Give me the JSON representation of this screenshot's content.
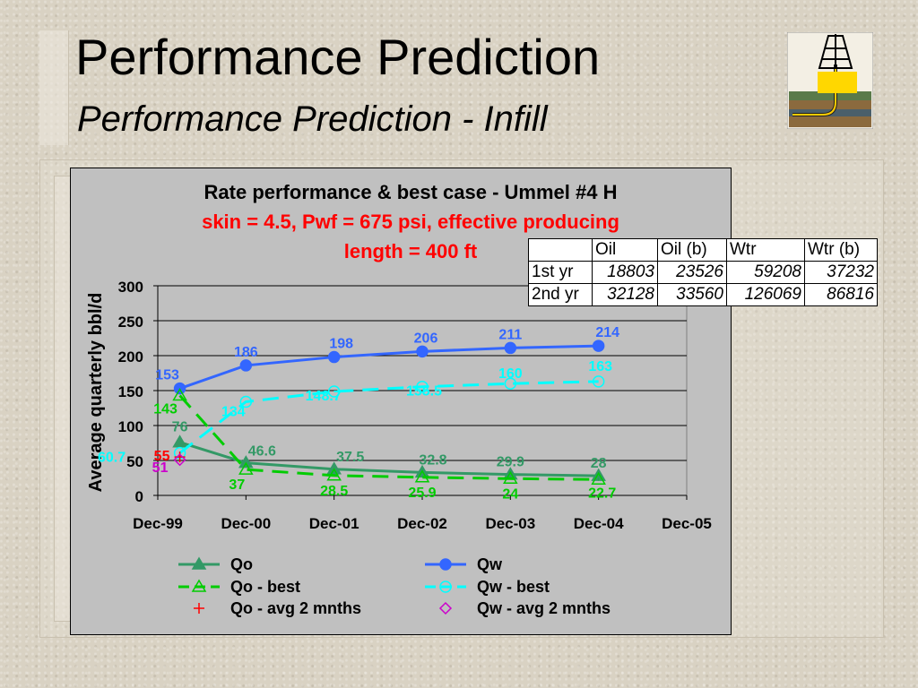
{
  "slide": {
    "title": "Performance Prediction",
    "subtitle": "Performance Prediction - Infill"
  },
  "chart_title": {
    "line1": "Rate performance & best case - Ummel #4 H",
    "line2": "skin = 4.5, Pwf = 675 psi, effective producing",
    "line3": "length = 400 ft"
  },
  "table": {
    "headers": [
      "",
      "Oil",
      "Oil (b)",
      "Wtr",
      "Wtr (b)"
    ],
    "rows": [
      {
        "label": "1st yr",
        "values": [
          "18803",
          "23526",
          "59208",
          "37232"
        ]
      },
      {
        "label": "2nd yr",
        "values": [
          "32128",
          "33560",
          "126069",
          "86816"
        ]
      }
    ]
  },
  "chart_data": {
    "type": "line",
    "ylabel": "Average quarterly bbl/d",
    "xlabel": "",
    "ylim": [
      0,
      300
    ],
    "yticks": [
      0,
      50,
      100,
      150,
      200,
      250,
      300
    ],
    "xticks": [
      "Dec-99",
      "Dec-00",
      "Dec-01",
      "Dec-02",
      "Dec-03",
      "Dec-04",
      "Dec-05"
    ],
    "grid": "horizontal",
    "legend_position": "bottom",
    "series": [
      {
        "name": "Qo",
        "color": "#339966",
        "style": "solid",
        "marker": "triangle-filled",
        "x": [
          0.25,
          1.0,
          2.0,
          3.0,
          4.0,
          5.0
        ],
        "values": [
          76,
          46.6,
          37.5,
          32.8,
          29.9,
          28
        ],
        "labels": [
          "76",
          "46.6",
          "37.5",
          "32.8",
          "29.9",
          "28"
        ]
      },
      {
        "name": "Qw",
        "color": "#3366ff",
        "style": "solid",
        "marker": "circle-filled",
        "x": [
          0.25,
          1.0,
          2.0,
          3.0,
          4.0,
          5.0
        ],
        "values": [
          153,
          186,
          198,
          206,
          211,
          214
        ],
        "labels": [
          "153",
          "186",
          "198",
          "206",
          "211",
          "214"
        ]
      },
      {
        "name": "Qo - best",
        "color": "#00cc00",
        "style": "dashed",
        "marker": "triangle-open",
        "x": [
          0.25,
          1.0,
          2.0,
          3.0,
          4.0,
          5.0
        ],
        "values": [
          143,
          37,
          28.5,
          25.9,
          24,
          22.7
        ],
        "labels": [
          "143",
          "37",
          "28.5",
          "25.9",
          "24",
          "22.7"
        ]
      },
      {
        "name": "Qw - best",
        "color": "#00ffff",
        "style": "dashed",
        "marker": "circle-open",
        "x": [
          0.25,
          1.0,
          2.0,
          3.0,
          4.0,
          5.0
        ],
        "values": [
          60.7,
          134,
          148.7,
          155.5,
          160,
          163
        ],
        "labels": [
          "60.7",
          "134",
          "148.7",
          "155.5",
          "160",
          "163"
        ]
      },
      {
        "name": "Qo - avg 2 mnths",
        "color": "#ff0000",
        "style": "none",
        "marker": "plus",
        "x": [
          0.25
        ],
        "values": [
          55
        ],
        "labels": [
          "55"
        ]
      },
      {
        "name": "Qw - avg 2 mnths",
        "color": "#cc00cc",
        "style": "none",
        "marker": "diamond-open",
        "x": [
          0.25
        ],
        "values": [
          51
        ],
        "labels": [
          "51"
        ]
      }
    ]
  }
}
